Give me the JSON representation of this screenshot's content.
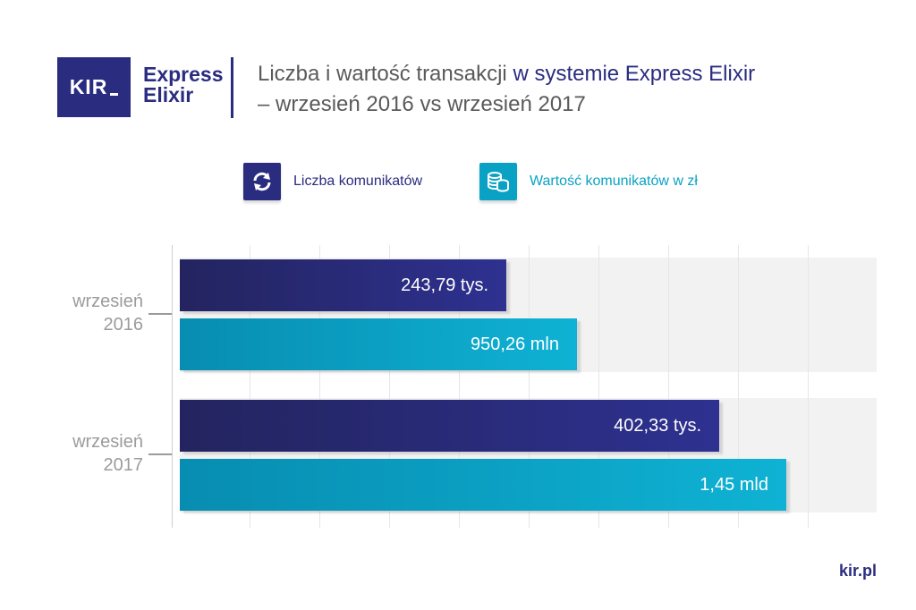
{
  "logo": {
    "kir": "KIR",
    "brand_line1": "Express",
    "brand_line2": "Elixir"
  },
  "title": {
    "part1": "Liczba i wartość transakcji ",
    "part1_accent": "w systemie Express Elixir",
    "line2": "– wrzesień 2016 vs wrzesień 2017"
  },
  "legend": [
    {
      "label": "Liczba komunikatów",
      "icon": "refresh-arrows-icon",
      "color": "#2a2c80"
    },
    {
      "label": "Wartość komunikatów w zł",
      "icon": "coin-stack-icon",
      "color": "#0aa2c4"
    }
  ],
  "chart_data": {
    "type": "bar",
    "orientation": "horizontal",
    "categories": [
      {
        "line1": "wrzesień",
        "line2": "2016"
      },
      {
        "line1": "wrzesień",
        "line2": "2017"
      }
    ],
    "series": [
      {
        "name": "Liczba komunikatów",
        "color": "#2a2c80",
        "values": [
          243.79,
          402.33
        ],
        "unit": "tys.",
        "labels": [
          "243,79 tys.",
          "402,33 tys."
        ]
      },
      {
        "name": "Wartość komunikatów w zł",
        "color": "#0aa2c4",
        "values": [
          950.26,
          1450
        ],
        "unit": "mln",
        "labels": [
          "950,26 mln",
          "1,45 mld"
        ]
      }
    ],
    "grid": true,
    "legend_position": "top"
  },
  "footer": "kir.pl"
}
